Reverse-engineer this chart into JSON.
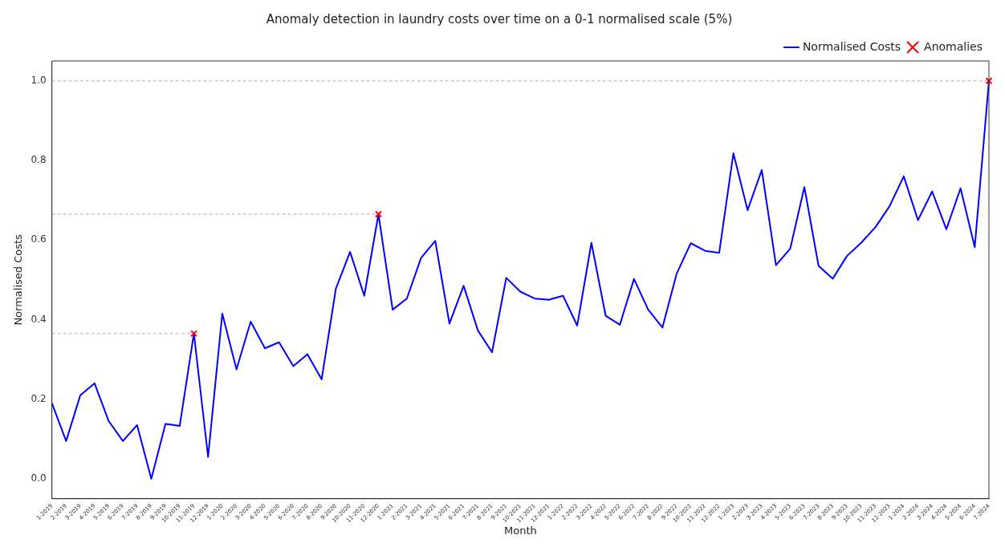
{
  "chart_data": {
    "type": "line",
    "title": "Anomaly detection in laundry costs over time on a 0-1 normalised scale (5%)",
    "xlabel": "Month",
    "ylabel": "Normalised Costs",
    "categories": [
      "1-2019",
      "2-2019",
      "3-2019",
      "4-2019",
      "5-2019",
      "6-2019",
      "7-2019",
      "8-2019",
      "9-2019",
      "10-2019",
      "11-2019",
      "12-2019",
      "1-2020",
      "2-2020",
      "3-2020",
      "4-2020",
      "5-2020",
      "6-2020",
      "7-2020",
      "8-2020",
      "9-2020",
      "10-2020",
      "11-2020",
      "12-2020",
      "1-2021",
      "2-2021",
      "3-2021",
      "4-2021",
      "5-2021",
      "6-2021",
      "7-2021",
      "8-2021",
      "9-2021",
      "10-2021",
      "11-2021",
      "12-2021",
      "1-2022",
      "2-2022",
      "3-2022",
      "4-2022",
      "5-2022",
      "6-2022",
      "7-2022",
      "8-2022",
      "9-2022",
      "10-2022",
      "11-2022",
      "12-2022",
      "1-2023",
      "2-2023",
      "3-2023",
      "4-2023",
      "5-2023",
      "6-2023",
      "7-2023",
      "8-2023",
      "9-2023",
      "10-2023",
      "11-2023",
      "12-2023",
      "1-2024",
      "2-2024",
      "3-2024",
      "4-2024",
      "5-2024",
      "6-2024",
      "7-2024"
    ],
    "series": [
      {
        "name": "Normalised Costs",
        "type": "line",
        "color": "#0000ff",
        "marker": "none",
        "line_style": "solid",
        "values": [
          0.19,
          0.095,
          0.21,
          0.24,
          0.145,
          0.095,
          0.135,
          0.0,
          0.138,
          0.133,
          0.365,
          0.055,
          0.415,
          0.275,
          0.395,
          0.328,
          0.343,
          0.283,
          0.313,
          0.25,
          0.478,
          0.57,
          0.46,
          0.665,
          0.425,
          0.453,
          0.555,
          0.598,
          0.39,
          0.485,
          0.373,
          0.318,
          0.505,
          0.47,
          0.453,
          0.45,
          0.46,
          0.385,
          0.593,
          0.41,
          0.387,
          0.502,
          0.425,
          0.38,
          0.515,
          0.592,
          0.573,
          0.568,
          0.818,
          0.675,
          0.776,
          0.537,
          0.578,
          0.733,
          0.535,
          0.503,
          0.56,
          0.593,
          0.632,
          0.685,
          0.76,
          0.65,
          0.722,
          0.627,
          0.73,
          0.582,
          1.0
        ]
      },
      {
        "name": "Anomalies",
        "type": "scatter",
        "color": "#ff0000",
        "marker": "cross",
        "x": [
          "11-2019",
          "12-2020",
          "7-2024"
        ],
        "values": [
          0.365,
          0.665,
          1.0
        ]
      }
    ],
    "ref_lines": [
      {
        "axis": "y",
        "value": 0.365,
        "color": "#b0b0b0",
        "line_style": "dashed"
      },
      {
        "axis": "y",
        "value": 0.665,
        "color": "#b0b0b0",
        "line_style": "dashed"
      },
      {
        "axis": "y",
        "value": 1.0,
        "color": "#b0b0b0",
        "line_style": "dashed"
      }
    ],
    "ylim": [
      -0.05,
      1.05
    ],
    "yticks": [
      {
        "value": 0,
        "label": "0.0"
      },
      {
        "value": 0.2,
        "label": "0.2"
      },
      {
        "value": 0.4,
        "label": "0.4"
      },
      {
        "value": 0.6,
        "label": "0.6"
      },
      {
        "value": 0.8,
        "label": "0.8"
      },
      {
        "value": 1,
        "label": "1.0"
      }
    ],
    "grid": false,
    "legend": "top right"
  }
}
